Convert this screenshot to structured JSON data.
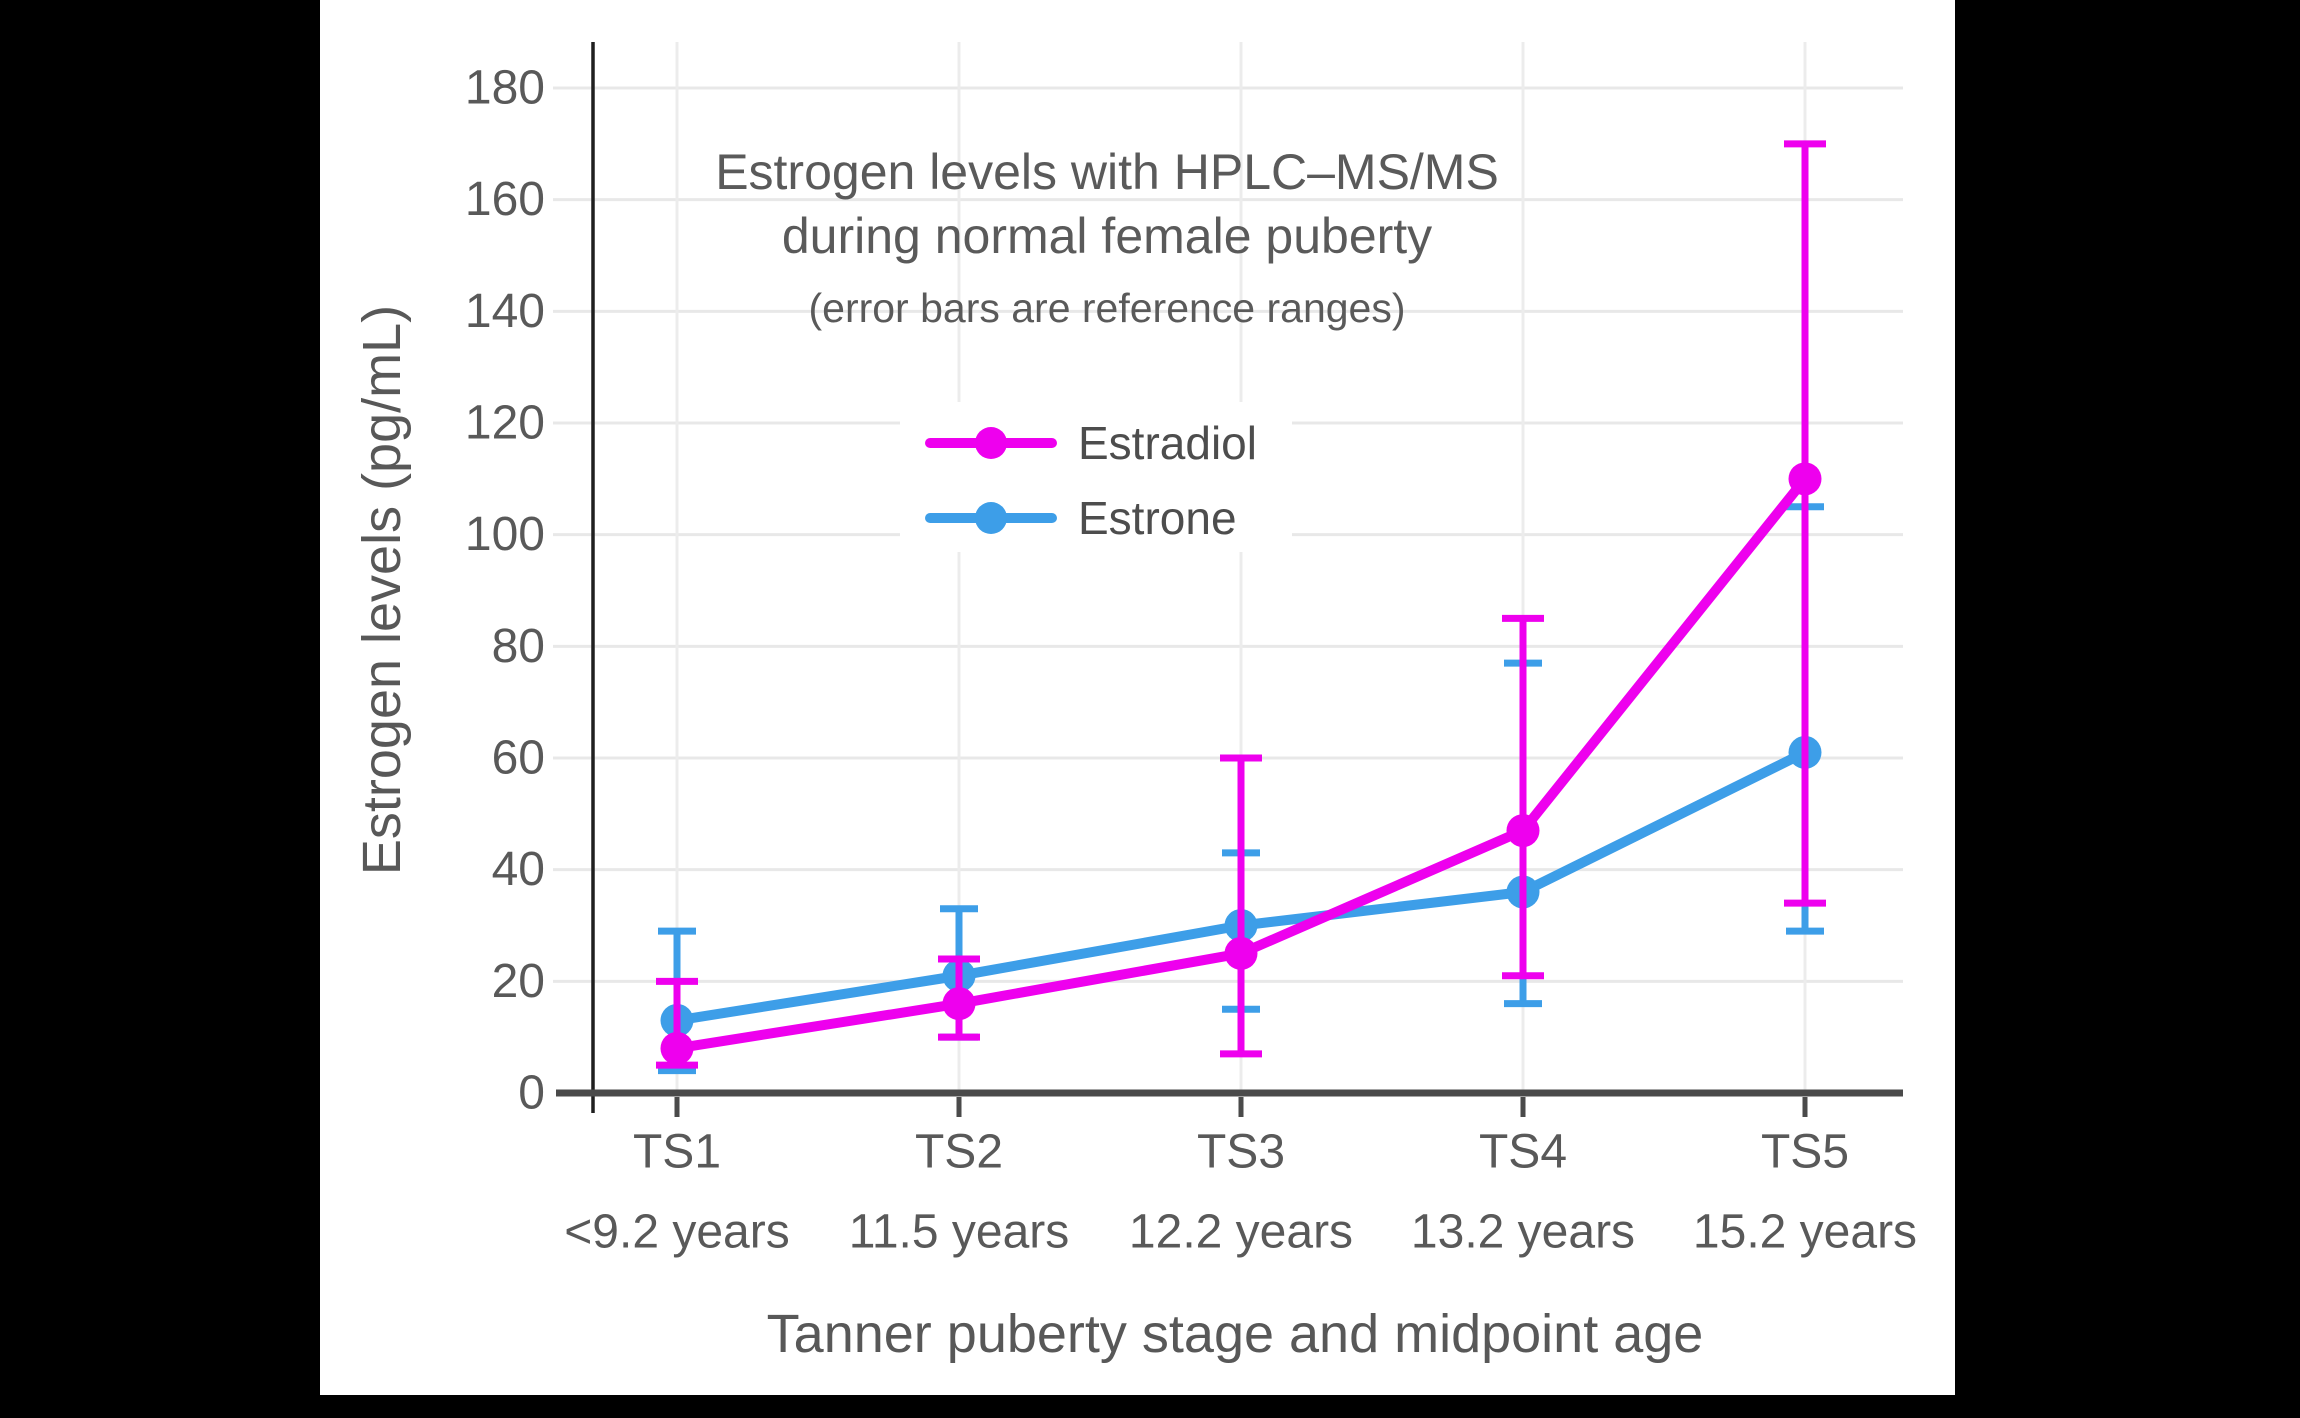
{
  "chart_data": {
    "type": "line",
    "title": "Estrogen levels with HPLC–MS/MS",
    "title_line2": "during normal female puberty",
    "subtitle": "(error bars are reference ranges)",
    "xlabel": "Tanner puberty stage and midpoint age",
    "ylabel": "Estrogen levels (pg/mL)",
    "categories": [
      "TS1",
      "TS2",
      "TS3",
      "TS4",
      "TS5"
    ],
    "category_sublabels": [
      "<9.2 years",
      "11.5 years",
      "12.2 years",
      "13.2 years",
      "15.2 years"
    ],
    "y_ticks": [
      0,
      20,
      40,
      60,
      80,
      100,
      120,
      140,
      160,
      180
    ],
    "ylim": [
      0,
      187
    ],
    "grid": true,
    "legend_position": "upper-center",
    "error_bars_meaning": "reference ranges",
    "series": [
      {
        "name": "Estradiol",
        "color": "#ee00ee",
        "values": [
          8,
          16,
          25,
          47,
          110
        ],
        "error_low": [
          5,
          10,
          7,
          21,
          34
        ],
        "error_high": [
          20,
          24,
          60,
          85,
          170
        ]
      },
      {
        "name": "Estrone",
        "color": "#3d9ee8",
        "values": [
          13,
          21,
          30,
          36,
          61
        ],
        "error_low": [
          4,
          10,
          15,
          16,
          29
        ],
        "error_high": [
          29,
          33,
          43,
          77,
          105
        ]
      }
    ],
    "colors": {
      "panel_background": "#ffffff",
      "outer_background": "#000000",
      "axis_line": "#4a4a4a",
      "y_axis_line": "#1f1f1f",
      "grid_horizontal": "#e8e8e8",
      "grid_vertical": "#ececec",
      "text_gray": "#595959"
    }
  }
}
